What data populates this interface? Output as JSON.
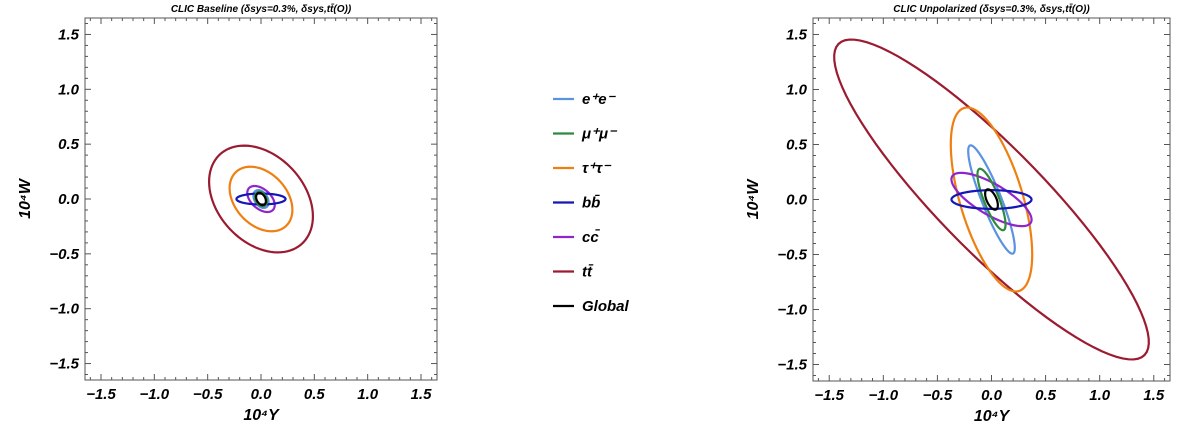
{
  "chart_data": [
    {
      "type": "contour",
      "title": "CLIC Baseline (δsys=0.3%, δsys,tt̄(O))",
      "xlabel": "10⁴Y",
      "ylabel": "10⁴W",
      "xlim": [
        -1.65,
        1.65
      ],
      "ylim": [
        -1.65,
        1.65
      ],
      "xticks": [
        "-1.5",
        "-1.0",
        "-0.5",
        "0.0",
        "0.5",
        "1.0",
        "1.5"
      ],
      "yticks": [
        "-1.5",
        "-1.0",
        "-0.5",
        "0.0",
        "0.5",
        "1.0",
        "1.5"
      ],
      "series": [
        {
          "name": "tt̄",
          "color": "#9b1b30",
          "ellipse": {
            "cx": 0.0,
            "cy": 0.0,
            "rx": 0.56,
            "ry": 0.4,
            "angle_deg": 135
          }
        },
        {
          "name": "τ⁺τ⁻",
          "color": "#f07f12",
          "ellipse": {
            "cx": 0.0,
            "cy": 0.0,
            "rx": 0.34,
            "ry": 0.24,
            "angle_deg": 135
          }
        },
        {
          "name": "cc̄",
          "color": "#8f26c9",
          "ellipse": {
            "cx": 0.0,
            "cy": 0.0,
            "rx": 0.15,
            "ry": 0.09,
            "angle_deg": 140
          }
        },
        {
          "name": "e⁺e⁻",
          "color": "#5b93e0",
          "ellipse": {
            "cx": 0.0,
            "cy": 0.0,
            "rx": 0.09,
            "ry": 0.06,
            "angle_deg": 125
          }
        },
        {
          "name": "bb̄",
          "color": "#1515b8",
          "ellipse": {
            "cx": 0.0,
            "cy": 0.0,
            "rx": 0.23,
            "ry": 0.05,
            "angle_deg": 0
          }
        },
        {
          "name": "μ⁺μ⁻",
          "color": "#2e8b3e",
          "ellipse": {
            "cx": 0.0,
            "cy": 0.0,
            "rx": 0.07,
            "ry": 0.05,
            "angle_deg": 120
          }
        },
        {
          "name": "Global",
          "color": "#000000",
          "ellipse": {
            "cx": 0.0,
            "cy": 0.0,
            "rx": 0.06,
            "ry": 0.04,
            "angle_deg": 120
          }
        }
      ]
    },
    {
      "type": "contour",
      "title": "CLIC Unpolarized (δsys=0.3%, δsys,tt̄(O))",
      "xlabel": "10⁴Y",
      "ylabel": "10⁴W",
      "xlim": [
        -1.65,
        1.65
      ],
      "ylim": [
        -1.65,
        1.65
      ],
      "xticks": [
        "-1.5",
        "-1.0",
        "-0.5",
        "0.0",
        "0.5",
        "1.0",
        "1.5"
      ],
      "yticks": [
        "-1.5",
        "-1.0",
        "-0.5",
        "0.0",
        "0.5",
        "1.0",
        "1.5"
      ],
      "series": [
        {
          "name": "tt̄",
          "color": "#9b1b30",
          "ellipse": {
            "cx": 0.0,
            "cy": 0.0,
            "rx": 2.0,
            "ry": 0.48,
            "angle_deg": 135
          }
        },
        {
          "name": "τ⁺τ⁻",
          "color": "#f07f12",
          "ellipse": {
            "cx": 0.0,
            "cy": 0.0,
            "rx": 0.87,
            "ry": 0.29,
            "angle_deg": 107
          }
        },
        {
          "name": "e⁺e⁻",
          "color": "#5b93e0",
          "ellipse": {
            "cx": 0.0,
            "cy": 0.0,
            "rx": 0.53,
            "ry": 0.09,
            "angle_deg": 112
          }
        },
        {
          "name": "cc̄",
          "color": "#8f26c9",
          "ellipse": {
            "cx": 0.0,
            "cy": 0.0,
            "rx": 0.42,
            "ry": 0.14,
            "angle_deg": 150
          }
        },
        {
          "name": "μ⁺μ⁻",
          "color": "#2e8b3e",
          "ellipse": {
            "cx": 0.0,
            "cy": 0.0,
            "rx": 0.3,
            "ry": 0.07,
            "angle_deg": 112
          }
        },
        {
          "name": "bb̄",
          "color": "#1515b8",
          "ellipse": {
            "cx": 0.0,
            "cy": 0.0,
            "rx": 0.37,
            "ry": 0.085,
            "angle_deg": 0
          }
        },
        {
          "name": "Global",
          "color": "#000000",
          "ellipse": {
            "cx": 0.0,
            "cy": 0.0,
            "rx": 0.1,
            "ry": 0.045,
            "angle_deg": 115
          }
        }
      ]
    }
  ],
  "legend": {
    "placement": "center",
    "items": [
      {
        "label": "e⁺e⁻",
        "color": "#5b93e0"
      },
      {
        "label": "μ⁺μ⁻",
        "color": "#2e8b3e"
      },
      {
        "label": "τ⁺τ⁻",
        "color": "#f07f12"
      },
      {
        "label": "bb̄",
        "color": "#1515b8"
      },
      {
        "label": "cc̄",
        "color": "#8f26c9"
      },
      {
        "label": "tt̄",
        "color": "#9b1b30"
      },
      {
        "label": "Global",
        "color": "#000000"
      }
    ]
  }
}
